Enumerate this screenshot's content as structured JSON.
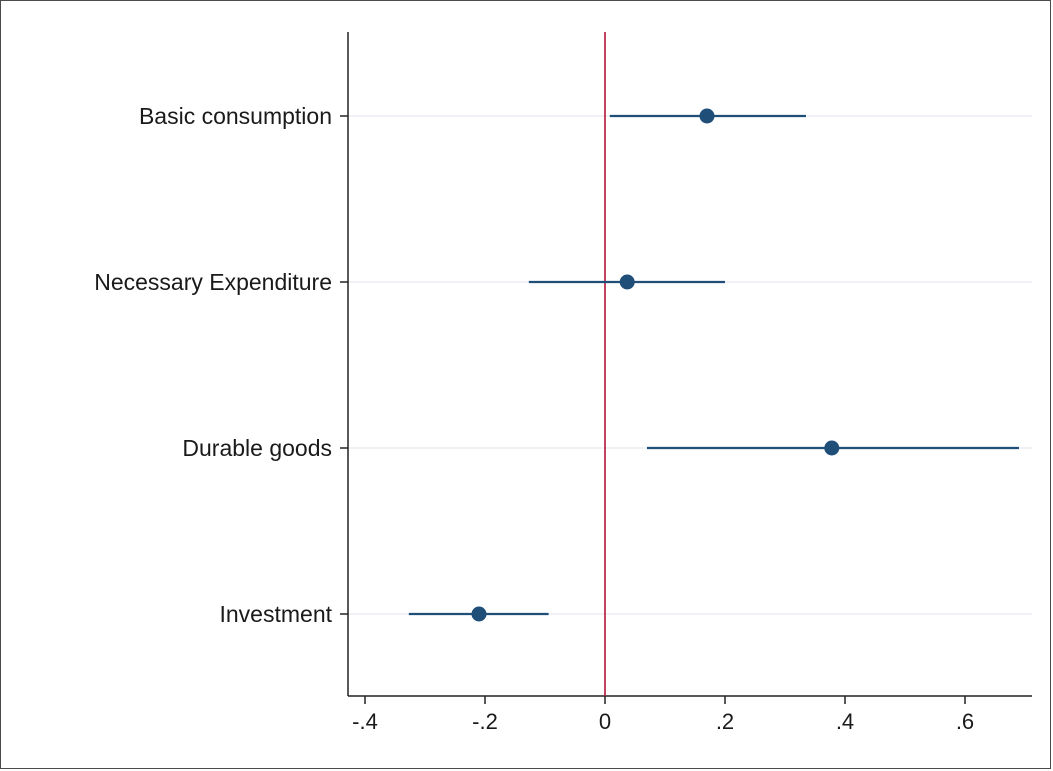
{
  "chart_data": {
    "type": "scatter",
    "subtype": "coefficient-plot",
    "title": "",
    "xlabel": "",
    "ylabel": "",
    "xlim": [
      -0.44,
      0.71
    ],
    "x_ticks": [
      -0.4,
      -0.2,
      0,
      0.2,
      0.4,
      0.6
    ],
    "x_tick_labels": [
      "-.4",
      "-.2",
      "0",
      ".2",
      ".4",
      ".6"
    ],
    "reference_line": {
      "x": 0,
      "color": "#b5123b"
    },
    "grid": "horizontal at categories",
    "categories": [
      "Basic consumption",
      "Necessary Expenditure",
      "Durable goods",
      "Investment"
    ],
    "estimates": [
      {
        "label": "Basic consumption",
        "value": 0.17,
        "ci_low": 0.008,
        "ci_high": 0.335
      },
      {
        "label": "Necessary Expenditure",
        "value": 0.037,
        "ci_low": -0.127,
        "ci_high": 0.2
      },
      {
        "label": "Durable goods",
        "value": 0.378,
        "ci_low": 0.07,
        "ci_high": 0.69
      },
      {
        "label": "Investment",
        "value": -0.21,
        "ci_low": -0.327,
        "ci_high": -0.094
      }
    ],
    "marker_color": "#1f4e79",
    "ci_color": "#1f4e79",
    "grid_color": "#e6ebef",
    "axis_color": "#222222"
  }
}
